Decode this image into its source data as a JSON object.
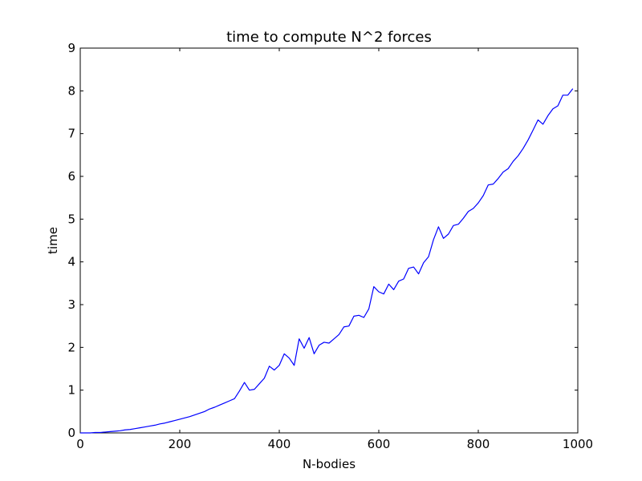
{
  "chart_data": {
    "type": "line",
    "title": "time to compute N^2 forces",
    "xlabel": "N-bodies",
    "ylabel": "time",
    "xlim": [
      0,
      1000
    ],
    "ylim": [
      0,
      9
    ],
    "xticks": [
      "0",
      "200",
      "400",
      "600",
      "800",
      "1000"
    ],
    "yticks": [
      "0",
      "1",
      "2",
      "3",
      "4",
      "5",
      "6",
      "7",
      "8",
      "9"
    ],
    "grid": false,
    "legend": "none",
    "line_color": "#0000ff",
    "series": [
      {
        "x": [
          0,
          10,
          20,
          30,
          40,
          50,
          60,
          70,
          80,
          90,
          100,
          110,
          120,
          130,
          140,
          150,
          160,
          170,
          180,
          190,
          200,
          210,
          220,
          230,
          240,
          250,
          260,
          270,
          280,
          290,
          300,
          310,
          320,
          330,
          340,
          350,
          360,
          370,
          380,
          390,
          400,
          410,
          420,
          430,
          440,
          450,
          460,
          470,
          480,
          490,
          500,
          510,
          520,
          530,
          540,
          550,
          560,
          570,
          580,
          590,
          600,
          610,
          620,
          630,
          640,
          650,
          660,
          670,
          680,
          690,
          700,
          710,
          720,
          730,
          740,
          750,
          760,
          770,
          780,
          790,
          800,
          810,
          820,
          830,
          840,
          850,
          860,
          870,
          880,
          890,
          900,
          910,
          920,
          930,
          940,
          950,
          960,
          970,
          980,
          990
        ],
        "y": [
          0.0,
          0.0,
          0.0,
          0.01,
          0.01,
          0.02,
          0.03,
          0.04,
          0.05,
          0.07,
          0.08,
          0.1,
          0.12,
          0.14,
          0.16,
          0.18,
          0.21,
          0.23,
          0.26,
          0.29,
          0.32,
          0.35,
          0.38,
          0.42,
          0.46,
          0.5,
          0.56,
          0.6,
          0.65,
          0.7,
          0.75,
          0.8,
          0.98,
          1.18,
          1.0,
          1.02,
          1.15,
          1.28,
          1.56,
          1.47,
          1.58,
          1.85,
          1.75,
          1.58,
          2.2,
          1.98,
          2.23,
          1.85,
          2.05,
          2.12,
          2.1,
          2.2,
          2.3,
          2.48,
          2.5,
          2.73,
          2.75,
          2.7,
          2.9,
          3.42,
          3.3,
          3.25,
          3.48,
          3.35,
          3.55,
          3.6,
          3.85,
          3.88,
          3.72,
          3.98,
          4.12,
          4.52,
          4.82,
          4.55,
          4.65,
          4.85,
          4.88,
          5.02,
          5.18,
          5.25,
          5.38,
          5.55,
          5.8,
          5.82,
          5.95,
          6.1,
          6.18,
          6.35,
          6.48,
          6.65,
          6.85,
          7.08,
          7.32,
          7.22,
          7.42,
          7.58,
          7.65,
          7.9,
          7.9,
          8.05
        ]
      }
    ]
  }
}
